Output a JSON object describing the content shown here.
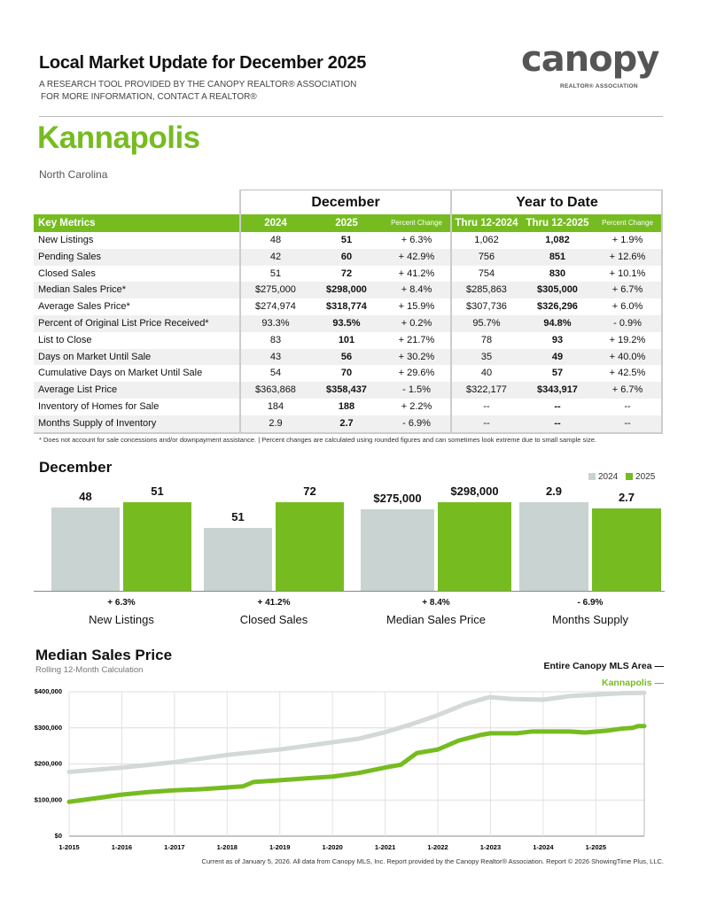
{
  "header": {
    "title": "Local Market Update for December 2025",
    "subtitle1": "A RESEARCH TOOL PROVIDED BY THE CANOPY REALTOR® ASSOCIATION",
    "subtitle2": "FOR MORE INFORMATION, CONTACT A REALTOR®"
  },
  "logo": {
    "word": "canopy",
    "tagline": "REALTOR® ASSOCIATION"
  },
  "location": {
    "city": "Kannapolis",
    "state": "North Carolina"
  },
  "colors": {
    "green": "#76bc21",
    "gray_bar": "#c9d3d1",
    "canopy_line": "#d3d9d7"
  },
  "table": {
    "group_december": "December",
    "group_ytd": "Year to Date",
    "headers": [
      "Key Metrics",
      "2024",
      "2025",
      "Percent Change",
      "Thru 12-2024",
      "Thru 12-2025",
      "Percent Change"
    ],
    "rows": [
      [
        "New Listings",
        "48",
        "51",
        "+ 6.3%",
        "1,062",
        "1,082",
        "+ 1.9%"
      ],
      [
        "Pending Sales",
        "42",
        "60",
        "+ 42.9%",
        "756",
        "851",
        "+ 12.6%"
      ],
      [
        "Closed Sales",
        "51",
        "72",
        "+ 41.2%",
        "754",
        "830",
        "+ 10.1%"
      ],
      [
        "Median Sales Price*",
        "$275,000",
        "$298,000",
        "+ 8.4%",
        "$285,863",
        "$305,000",
        "+ 6.7%"
      ],
      [
        "Average Sales Price*",
        "$274,974",
        "$318,774",
        "+ 15.9%",
        "$307,736",
        "$326,296",
        "+ 6.0%"
      ],
      [
        "Percent of Original List Price Received*",
        "93.3%",
        "93.5%",
        "+ 0.2%",
        "95.7%",
        "94.8%",
        "- 0.9%"
      ],
      [
        "List to Close",
        "83",
        "101",
        "+ 21.7%",
        "78",
        "93",
        "+ 19.2%"
      ],
      [
        "Days on Market Until Sale",
        "43",
        "56",
        "+ 30.2%",
        "35",
        "49",
        "+ 40.0%"
      ],
      [
        "Cumulative Days on Market Until Sale",
        "54",
        "70",
        "+ 29.6%",
        "40",
        "57",
        "+ 42.5%"
      ],
      [
        "Average List Price",
        "$363,868",
        "$358,437",
        "- 1.5%",
        "$322,177",
        "$343,917",
        "+ 6.7%"
      ],
      [
        "Inventory of Homes for Sale",
        "184",
        "188",
        "+ 2.2%",
        "--",
        "--",
        "--"
      ],
      [
        "Months Supply of Inventory",
        "2.9",
        "2.7",
        "- 6.9%",
        "--",
        "--",
        "--"
      ]
    ],
    "footnote": "* Does not account for sale concessions and/or downpayment assistance.  |  Percent changes are calculated using rounded figures and can sometimes look extreme due to small sample size."
  },
  "december_chart": {
    "title": "December",
    "legend": [
      "2024",
      "2025"
    ],
    "groups": [
      {
        "name": "New Listings",
        "v2024": 48,
        "v2025": 51,
        "l2024": "48",
        "l2025": "51",
        "change": "+ 6.3%"
      },
      {
        "name": "Closed Sales",
        "v2024": 51,
        "v2025": 72,
        "l2024": "51",
        "l2025": "72",
        "change": "+ 41.2%"
      },
      {
        "name": "Median Sales Price",
        "v2024": 275000,
        "v2025": 298000,
        "l2024": "$275,000",
        "l2025": "$298,000",
        "change": "+ 8.4%"
      },
      {
        "name": "Months Supply",
        "v2024": 2.9,
        "v2025": 2.7,
        "l2024": "2.9",
        "l2025": "2.7",
        "change": "- 6.9%"
      }
    ]
  },
  "chart_data": {
    "type": "line",
    "title": "Median Sales Price",
    "subtitle": "Rolling 12-Month Calculation",
    "legend_placement": "top-right",
    "grid": true,
    "ylim": [
      0,
      400000
    ],
    "yticks": [
      "$0",
      "$100,000",
      "$200,000",
      "$300,000",
      "$400,000"
    ],
    "xticks": [
      "1-2015",
      "1-2016",
      "1-2017",
      "1-2018",
      "1-2019",
      "1-2020",
      "1-2021",
      "1-2022",
      "1-2023",
      "1-2024",
      "1-2025"
    ],
    "series": [
      {
        "name": "Entire Canopy MLS Area",
        "color": "#d3d9d7",
        "points": [
          [
            2015.0,
            178000
          ],
          [
            2016.0,
            190000
          ],
          [
            2017.0,
            205000
          ],
          [
            2018.0,
            225000
          ],
          [
            2019.0,
            240000
          ],
          [
            2020.0,
            260000
          ],
          [
            2020.5,
            270000
          ],
          [
            2021.0,
            288000
          ],
          [
            2021.5,
            310000
          ],
          [
            2022.0,
            335000
          ],
          [
            2022.5,
            365000
          ],
          [
            2022.9,
            382000
          ],
          [
            2023.0,
            385000
          ],
          [
            2023.4,
            380000
          ],
          [
            2024.0,
            378000
          ],
          [
            2024.5,
            388000
          ],
          [
            2025.0,
            392000
          ],
          [
            2025.5,
            396000
          ],
          [
            2025.92,
            397000
          ]
        ]
      },
      {
        "name": "Kannapolis",
        "color": "#76bc21",
        "points": [
          [
            2015.0,
            95000
          ],
          [
            2015.5,
            105000
          ],
          [
            2016.0,
            115000
          ],
          [
            2016.5,
            122000
          ],
          [
            2017.0,
            127000
          ],
          [
            2017.5,
            130000
          ],
          [
            2018.0,
            135000
          ],
          [
            2018.3,
            138000
          ],
          [
            2018.5,
            150000
          ],
          [
            2019.0,
            155000
          ],
          [
            2019.5,
            160000
          ],
          [
            2020.0,
            165000
          ],
          [
            2020.5,
            175000
          ],
          [
            2021.0,
            190000
          ],
          [
            2021.3,
            198000
          ],
          [
            2021.6,
            230000
          ],
          [
            2022.0,
            240000
          ],
          [
            2022.4,
            265000
          ],
          [
            2022.8,
            280000
          ],
          [
            2023.0,
            285000
          ],
          [
            2023.5,
            285000
          ],
          [
            2023.8,
            290000
          ],
          [
            2024.5,
            290000
          ],
          [
            2024.8,
            287000
          ],
          [
            2025.2,
            292000
          ],
          [
            2025.5,
            298000
          ],
          [
            2025.7,
            300000
          ],
          [
            2025.8,
            305000
          ],
          [
            2025.92,
            305000
          ]
        ]
      }
    ]
  },
  "footer": "Current as of January 5, 2026. All data from Canopy MLS, Inc. Report provided by the Canopy Realtor® Association. Report © 2026 ShowingTime Plus, LLC."
}
